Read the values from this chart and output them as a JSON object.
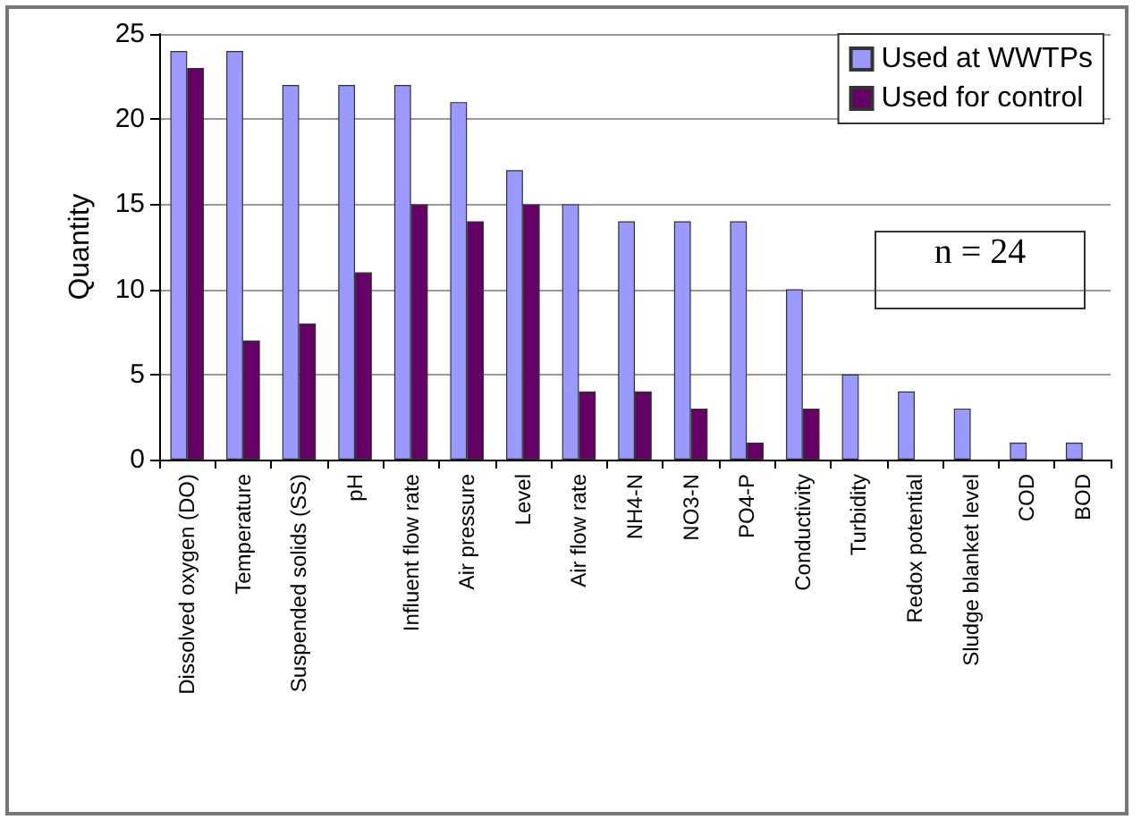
{
  "chart_data": {
    "type": "bar",
    "ylabel": "Quantity",
    "categories": [
      "Dissolved oxygen (DO)",
      "Temperature",
      "Suspended solids (SS)",
      "pH",
      "Influent flow rate",
      "Air pressure",
      "Level",
      "Air flow rate",
      "NH4-N",
      "NO3-N",
      "PO4-P",
      "Conductivity",
      "Turbidity",
      "Redox potential",
      "Sludge blanket level",
      "COD",
      "BOD"
    ],
    "series": [
      {
        "name": "Used at WWTPs",
        "color": "#9999ff",
        "values": [
          24,
          24,
          22,
          22,
          22,
          21,
          17,
          15,
          14,
          14,
          14,
          10,
          5,
          4,
          3,
          1,
          1
        ]
      },
      {
        "name": "Used for control",
        "color": "#660066",
        "values": [
          23,
          7,
          8,
          11,
          15,
          14,
          15,
          4,
          4,
          3,
          1,
          3,
          null,
          null,
          null,
          null,
          null
        ]
      }
    ],
    "ylim": [
      0,
      25
    ],
    "yticks": [
      0,
      5,
      10,
      15,
      20,
      25
    ],
    "grid": "y",
    "legend": "top right",
    "annotations": [
      "n = 24"
    ]
  }
}
